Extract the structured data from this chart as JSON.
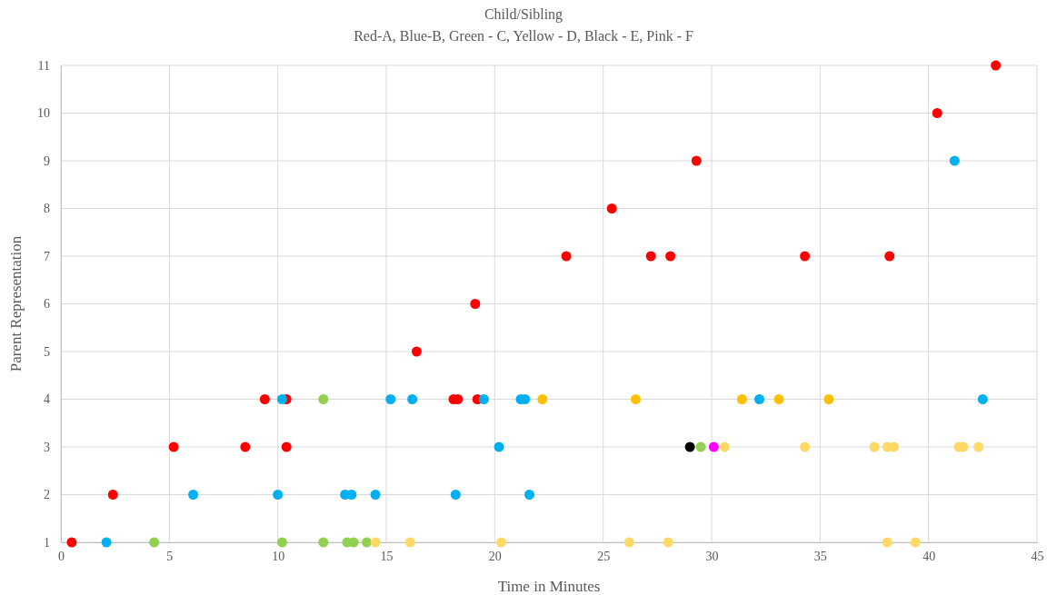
{
  "chart_data": {
    "type": "scatter",
    "title": "Child/Sibling",
    "subtitle": "Red-A, Blue-B, Green - C, Yellow - D, Black - E, Pink - F",
    "xlabel": "Time in Minutes",
    "ylabel": "Parent Representation",
    "xlim": [
      0,
      45
    ],
    "xticks": [
      0,
      5,
      10,
      15,
      20,
      25,
      30,
      35,
      40,
      45
    ],
    "ylim": [
      1,
      11
    ],
    "yticks": [
      1,
      2,
      3,
      4,
      5,
      6,
      7,
      8,
      9,
      10,
      11
    ],
    "grid": true,
    "marker": "circle",
    "series": [
      {
        "color": "#ff0000",
        "x": [
          0.5,
          2.4,
          5.2,
          8.5,
          9.4,
          10.4,
          10.4,
          16.4,
          18.1,
          18.3,
          19.1,
          19.2,
          23.3,
          25.4,
          27.2,
          28.1,
          29.3,
          34.3,
          38.2,
          40.4,
          43.1
        ],
        "values": [
          1,
          2,
          3,
          3,
          4,
          4,
          3,
          5,
          4,
          4,
          6,
          4,
          7,
          8,
          7,
          7,
          9,
          7,
          7,
          10,
          11
        ]
      },
      {
        "color": "#00b0f0",
        "x": [
          2.1,
          6.1,
          10.0,
          10.2,
          13.1,
          13.4,
          14.5,
          15.2,
          16.2,
          18.2,
          19.5,
          20.2,
          21.2,
          21.4,
          21.6,
          32.2,
          41.2,
          42.5
        ],
        "values": [
          1,
          2,
          2,
          4,
          2,
          2,
          2,
          4,
          4,
          2,
          4,
          3,
          4,
          4,
          2,
          4,
          9,
          4
        ]
      },
      {
        "color": "#92d050",
        "x": [
          4.3,
          10.2,
          12.1,
          12.1,
          13.2,
          13.5,
          14.1,
          29.5
        ],
        "values": [
          1,
          1,
          4,
          1,
          1,
          1,
          1,
          3
        ]
      },
      {
        "color": "#ffc000",
        "x": [
          22.2,
          26.5,
          31.4,
          33.1,
          35.4
        ],
        "values": [
          4,
          4,
          4,
          4,
          4
        ]
      },
      {
        "color": "#ffd966",
        "x": [
          14.5,
          16.1,
          20.3,
          26.2,
          28.0,
          30.6,
          34.3,
          37.5,
          38.1,
          38.4,
          38.1,
          39.4,
          41.4,
          41.6,
          42.3
        ],
        "values": [
          1,
          1,
          1,
          1,
          1,
          3,
          3,
          3,
          3,
          3,
          1,
          1,
          3,
          3,
          3
        ]
      },
      {
        "color": "#000000",
        "x": [
          29.0
        ],
        "values": [
          3
        ]
      },
      {
        "color": "#ff00ff",
        "x": [
          30.1
        ],
        "values": [
          3
        ]
      }
    ]
  }
}
